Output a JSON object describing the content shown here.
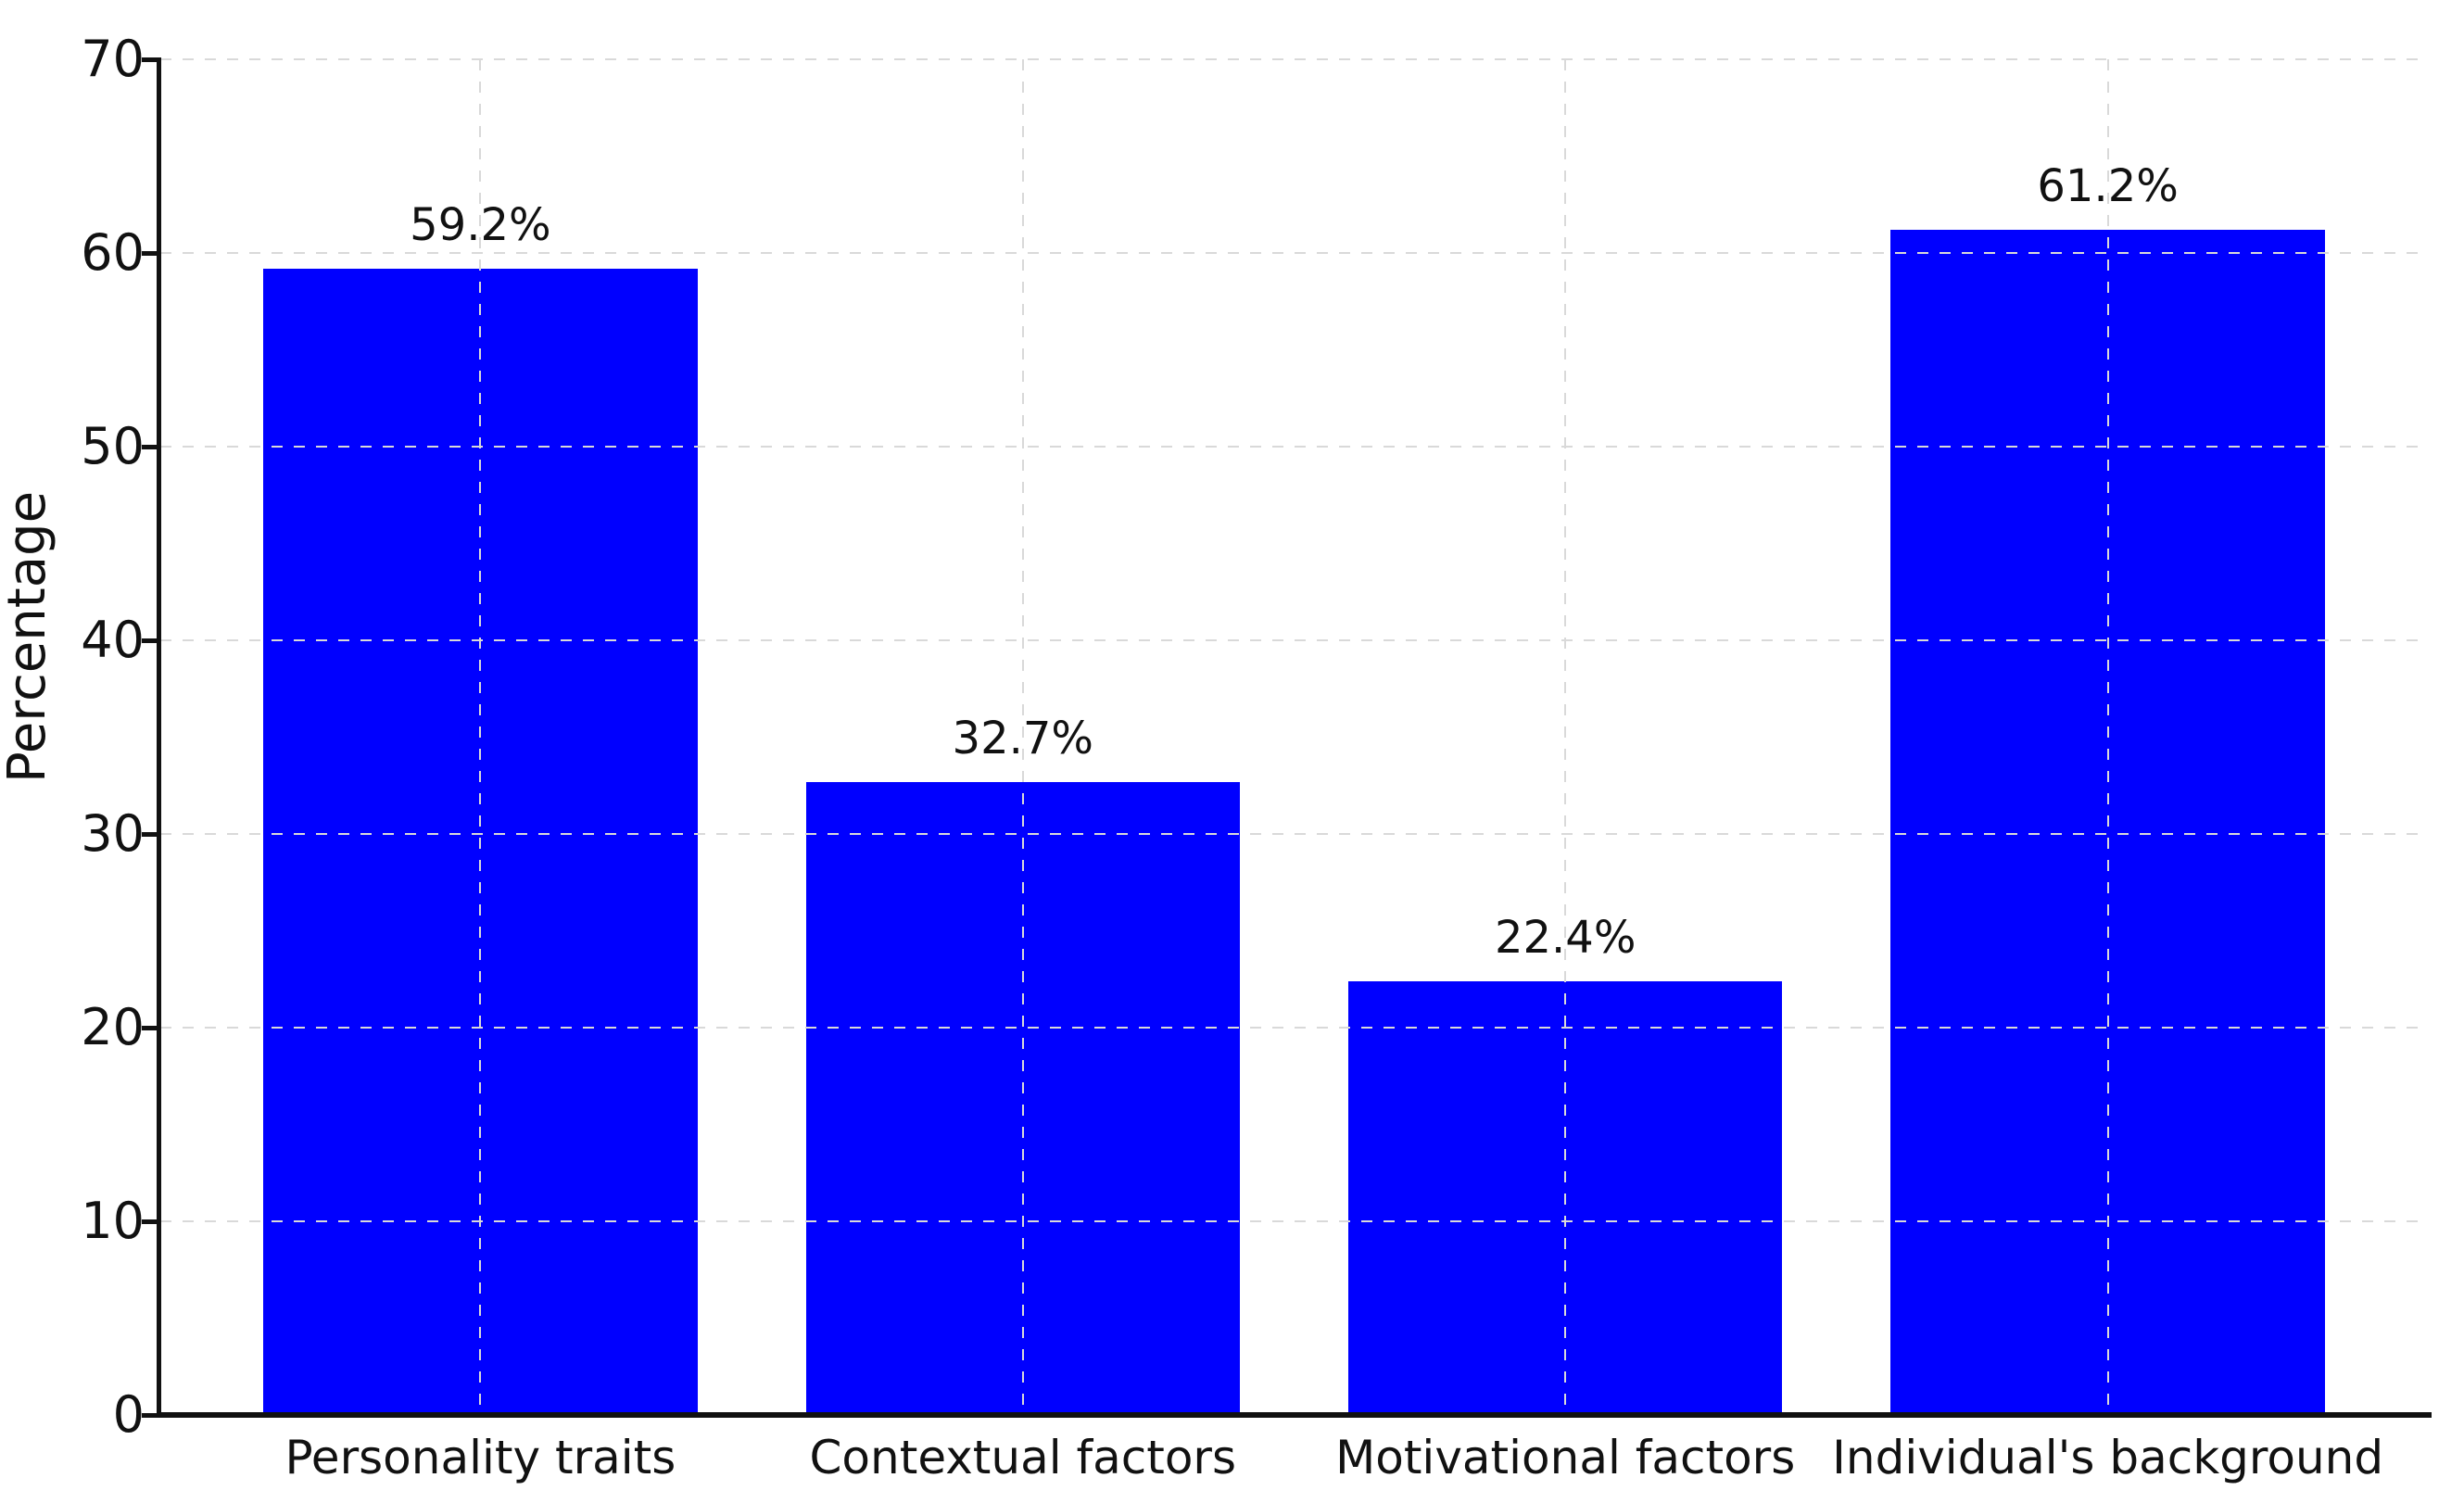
{
  "chart_data": {
    "type": "bar",
    "title": "",
    "categories": [
      "Personality traits",
      "Contextual factors",
      "Motivational factors",
      "Individual's background"
    ],
    "values": [
      59.2,
      32.7,
      22.4,
      61.2
    ],
    "value_labels": [
      "59.2%",
      "32.7%",
      "22.4%",
      "61.2%"
    ],
    "xlabel": "",
    "ylabel": "Percentage",
    "ylim": [
      0,
      70
    ],
    "yticks": [
      0,
      10,
      20,
      30,
      40,
      50,
      60,
      70
    ],
    "bar_color": "#0000ff",
    "grid": {
      "visible": true,
      "axis": "both",
      "style": "dashed",
      "color": "#d9d9d9",
      "above_bars": true
    },
    "axis_color": "#111111",
    "text_color": "#111111",
    "legend": {
      "visible": false
    },
    "background_color": "#ffffff"
  }
}
